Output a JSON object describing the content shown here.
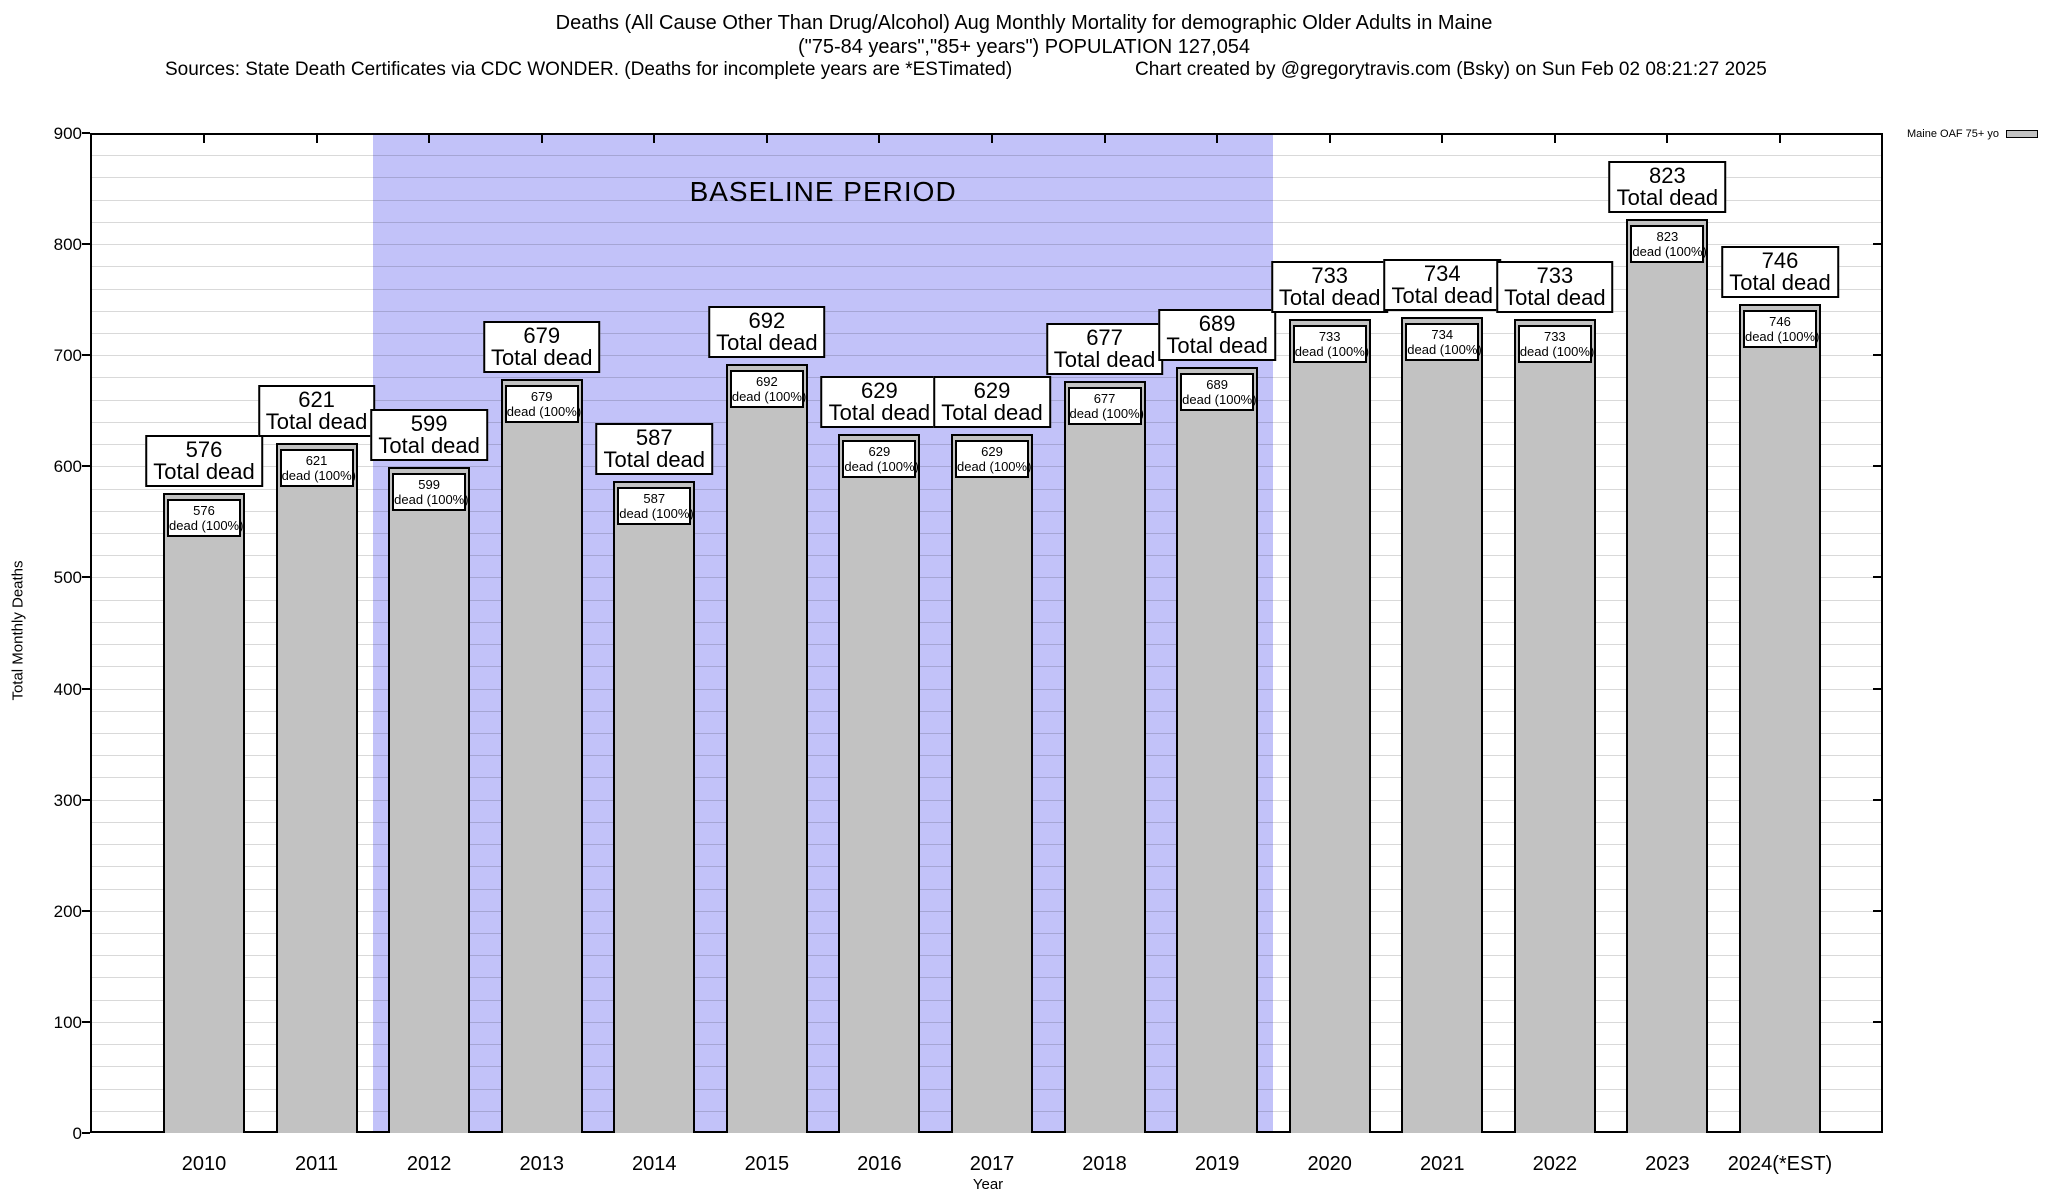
{
  "header": {
    "title_line1": "Deaths (All Cause Other Than Drug/Alcohol) Aug Monthly Mortality for demographic Older Adults in Maine",
    "title_line2": "(\"75-84 years\",\"85+ years\") POPULATION 127,054",
    "sources": "Sources: State Death Certificates via CDC WONDER. (Deaths for incomplete years are *ESTimated)",
    "credit": "Chart created by @gregorytravis.com (Bsky) on Sun Feb 02 08:21:27 2025"
  },
  "legend": {
    "label": "Maine OAF 75+ yo",
    "swatch_color": "#c2c2c2"
  },
  "chart_data": {
    "type": "bar",
    "title": "Deaths (All Cause Other Than Drug/Alcohol) Aug Monthly Mortality for demographic Older Adults in Maine",
    "subtitle": "(\"75-84 years\",\"85+ years\") POPULATION 127,054",
    "categories": [
      "2010",
      "2011",
      "2012",
      "2013",
      "2014",
      "2015",
      "2016",
      "2017",
      "2018",
      "2019",
      "2020",
      "2021",
      "2022",
      "2023",
      "2024(*EST)"
    ],
    "values": [
      576,
      621,
      599,
      679,
      587,
      692,
      629,
      629,
      677,
      689,
      733,
      734,
      733,
      823,
      746
    ],
    "series_name": "Maine OAF 75+ yo",
    "bar_top_label_suffix": "Total dead",
    "bar_inner_label_suffix": "dead (100%)",
    "xlabel": "Year",
    "ylabel": "Total Monthly Deaths",
    "ylim": [
      0,
      900
    ],
    "ytick_step": 100,
    "grid_step": 20,
    "grid": true,
    "legend_position": "top-right",
    "bar_color": "#c2c2c2",
    "baseline": {
      "label": "BASELINE PERIOD",
      "start_category": "2012",
      "end_category": "2019",
      "color": "#c2c2f9"
    }
  }
}
